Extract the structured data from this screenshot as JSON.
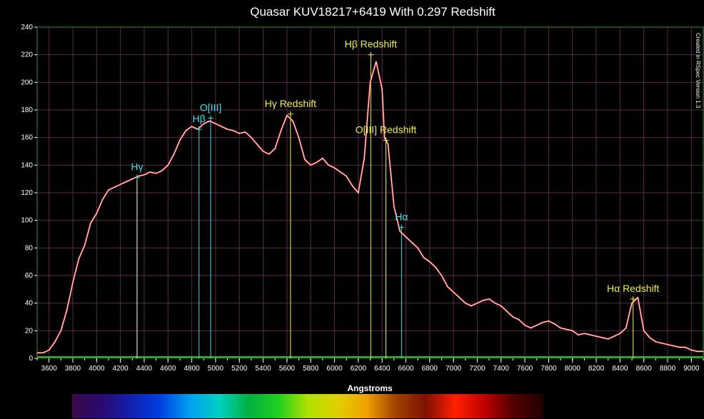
{
  "chart_data": {
    "type": "line",
    "title": "Quasar KUV18217+6419 With 0.297 Redshift",
    "xlabel": "Angstroms",
    "ylabel": "",
    "credit": "Created in RSpec Version 1.3",
    "xlim": [
      3500,
      9100
    ],
    "ylim": [
      0,
      240
    ],
    "x_ticks": [
      3600,
      3800,
      4000,
      4200,
      4400,
      4600,
      4800,
      5000,
      5200,
      5400,
      5600,
      5800,
      6000,
      6200,
      6400,
      6600,
      6800,
      7000,
      7200,
      7400,
      7600,
      7800,
      8000,
      8200,
      8400,
      8600,
      8800,
      9000
    ],
    "y_ticks": [
      0,
      20,
      40,
      60,
      80,
      100,
      120,
      140,
      160,
      180,
      200,
      220,
      240
    ],
    "grid": true,
    "colors": {
      "background": "#000000",
      "grid": "#5a2a4a",
      "spectrum": "#ffffff",
      "spectrum_shadow": "#ff2020",
      "rest_line": "#40e0e8",
      "redshift_line": "#f0f040",
      "baseline": "#40ff40"
    },
    "series": [
      {
        "x": [
          3500,
          3550,
          3600,
          3650,
          3700,
          3750,
          3800,
          3850,
          3900,
          3950,
          4000,
          4050,
          4100,
          4150,
          4200,
          4250,
          4300,
          4350,
          4400,
          4450,
          4500,
          4550,
          4600,
          4650,
          4700,
          4750,
          4800,
          4850,
          4900,
          4950,
          5000,
          5050,
          5100,
          5150,
          5200,
          5250,
          5300,
          5350,
          5400,
          5450,
          5500,
          5550,
          5600,
          5650,
          5700,
          5750,
          5800,
          5850,
          5900,
          5950,
          6000,
          6050,
          6100,
          6150,
          6200,
          6250,
          6300,
          6350,
          6400,
          6420,
          6450,
          6500,
          6550,
          6600,
          6650,
          6700,
          6750,
          6800,
          6850,
          6900,
          6950,
          7000,
          7050,
          7100,
          7150,
          7200,
          7250,
          7300,
          7350,
          7400,
          7450,
          7500,
          7550,
          7600,
          7650,
          7700,
          7750,
          7800,
          7850,
          7900,
          7950,
          8000,
          8050,
          8100,
          8150,
          8200,
          8250,
          8300,
          8350,
          8400,
          8450,
          8500,
          8550,
          8600,
          8650,
          8700,
          8750,
          8800,
          8850,
          8900,
          8950,
          9000,
          9050,
          9100
        ],
        "y": [
          4,
          4,
          6,
          12,
          20,
          35,
          55,
          72,
          82,
          98,
          105,
          115,
          122,
          124,
          126,
          128,
          130,
          132,
          133,
          135,
          134,
          136,
          140,
          148,
          158,
          165,
          168,
          166,
          170,
          172,
          170,
          168,
          166,
          165,
          163,
          164,
          160,
          155,
          150,
          148,
          152,
          165,
          176,
          172,
          160,
          144,
          140,
          142,
          145,
          140,
          138,
          135,
          132,
          125,
          120,
          145,
          200,
          215,
          195,
          160,
          155,
          110,
          92,
          88,
          84,
          80,
          73,
          70,
          66,
          60,
          52,
          48,
          44,
          40,
          38,
          40,
          42,
          43,
          40,
          38,
          34,
          30,
          28,
          24,
          22,
          24,
          26,
          27,
          25,
          22,
          21,
          20,
          17,
          18,
          17,
          16,
          15,
          14,
          16,
          18,
          22,
          40,
          44,
          20,
          15,
          12,
          11,
          10,
          9,
          8,
          8,
          6,
          5,
          5
        ]
      }
    ],
    "annotations": [
      {
        "label": "Hγ",
        "x": 4340,
        "y": 131,
        "color": "#40e0e8",
        "line_color": "#ffffff"
      },
      {
        "label": "Hβ",
        "x": 4861,
        "y": 166,
        "color": "#40e0e8",
        "line_color": "#40e0e8"
      },
      {
        "label": "O[III]",
        "x": 4959,
        "y": 174,
        "color": "#40e0e8",
        "line_color": "#40e0e8"
      },
      {
        "label": "Hγ Redshift",
        "x": 5630,
        "y": 177,
        "color": "#f0f040",
        "line_color": "#f0f040"
      },
      {
        "label": "Hβ Redshift",
        "x": 6305,
        "y": 220,
        "color": "#f0f040",
        "line_color": "#f0f040"
      },
      {
        "label": "O[III] Redshift",
        "x": 6432,
        "y": 158,
        "color": "#f0f040",
        "line_color": "#f0f040"
      },
      {
        "label": "Hα",
        "x": 6563,
        "y": 95,
        "color": "#40e0e8",
        "line_color": "#40e0e8"
      },
      {
        "label": "Hα Redshift",
        "x": 8510,
        "y": 43,
        "color": "#f0f040",
        "line_color": "#f0f040"
      }
    ],
    "spectrum_bar": {
      "stops": [
        "#3a0a4a",
        "#2a0a70",
        "#1020b0",
        "#0040e0",
        "#00a0f0",
        "#00d0c0",
        "#00b040",
        "#20d020",
        "#b0e000",
        "#e0d000",
        "#f0a000",
        "#a04000",
        "#801000",
        "#ff2000",
        "#c00000",
        "#500000",
        "#200000"
      ]
    }
  }
}
